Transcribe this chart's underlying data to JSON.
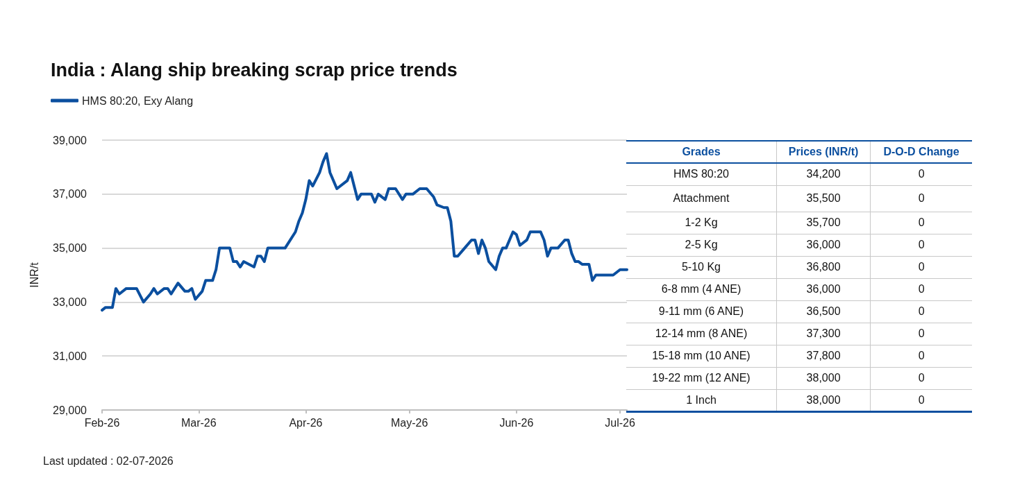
{
  "chart_data": [
    {
      "type": "line",
      "title": "India : Alang ship breaking scrap price trends",
      "ylabel": "INR/t",
      "annotations": [
        "Last updated : 02-07-2026"
      ],
      "x": [
        "2026-02-01",
        "2026-02-02",
        "2026-02-04",
        "2026-02-05",
        "2026-02-06",
        "2026-02-08",
        "2026-02-11",
        "2026-02-13",
        "2026-02-15",
        "2026-02-16",
        "2026-02-17",
        "2026-02-19",
        "2026-02-20",
        "2026-02-21",
        "2026-02-22",
        "2026-02-23",
        "2026-02-25",
        "2026-02-26",
        "2026-02-27",
        "2026-02-28",
        "2026-03-02",
        "2026-03-03",
        "2026-03-05",
        "2026-03-06",
        "2026-03-07",
        "2026-03-10",
        "2026-03-11",
        "2026-03-12",
        "2026-03-13",
        "2026-03-14",
        "2026-03-17",
        "2026-03-18",
        "2026-03-19",
        "2026-03-20",
        "2026-03-21",
        "2026-03-26",
        "2026-03-27",
        "2026-03-29",
        "2026-03-30",
        "2026-03-31",
        "2026-04-01",
        "2026-04-02",
        "2026-04-03",
        "2026-04-05",
        "2026-04-06",
        "2026-04-07",
        "2026-04-08",
        "2026-04-10",
        "2026-04-13",
        "2026-04-14",
        "2026-04-16",
        "2026-04-17",
        "2026-04-20",
        "2026-04-21",
        "2026-04-22",
        "2026-04-24",
        "2026-04-25",
        "2026-04-27",
        "2026-04-29",
        "2026-04-30",
        "2026-05-02",
        "2026-05-04",
        "2026-05-06",
        "2026-05-08",
        "2026-05-09",
        "2026-05-11",
        "2026-05-12",
        "2026-05-13",
        "2026-05-14",
        "2026-05-15",
        "2026-05-17",
        "2026-05-19",
        "2026-05-20",
        "2026-05-21",
        "2026-05-22",
        "2026-05-23",
        "2026-05-24",
        "2026-05-26",
        "2026-05-27",
        "2026-05-28",
        "2026-05-29",
        "2026-05-31",
        "2026-06-01",
        "2026-06-02",
        "2026-06-04",
        "2026-06-05",
        "2026-06-08",
        "2026-06-09",
        "2026-06-10",
        "2026-06-11",
        "2026-06-13",
        "2026-06-15",
        "2026-06-16",
        "2026-06-17",
        "2026-06-18",
        "2026-06-19",
        "2026-06-20",
        "2026-06-22",
        "2026-06-23",
        "2026-06-24",
        "2026-06-29",
        "2026-07-01",
        "2026-07-03"
      ],
      "series": [
        {
          "name": "HMS 80:20, Exy Alang",
          "color": "#0b4f9f",
          "values": [
            32700,
            32800,
            32800,
            33500,
            33300,
            33500,
            33500,
            33000,
            33300,
            33500,
            33300,
            33500,
            33500,
            33300,
            33500,
            33700,
            33400,
            33400,
            33500,
            33100,
            33400,
            33800,
            33800,
            34200,
            35000,
            35000,
            34500,
            34500,
            34300,
            34500,
            34300,
            34700,
            34700,
            34500,
            35000,
            35000,
            35200,
            35600,
            36000,
            36300,
            36800,
            37500,
            37300,
            37800,
            38200,
            38500,
            37800,
            37200,
            37500,
            37800,
            36800,
            37000,
            37000,
            36700,
            37000,
            36800,
            37200,
            37200,
            36800,
            37000,
            37000,
            37200,
            37200,
            36900,
            36600,
            36500,
            36500,
            36000,
            34700,
            34700,
            35000,
            35300,
            35300,
            34800,
            35300,
            35000,
            34500,
            34200,
            34700,
            35000,
            35000,
            35600,
            35500,
            35100,
            35300,
            35600,
            35600,
            35300,
            34700,
            35000,
            35000,
            35300,
            35300,
            34800,
            34500,
            34500,
            34400,
            34400,
            33800,
            34000,
            34000,
            34200,
            34200
          ]
        }
      ],
      "xlim": [
        "2026-02-01",
        "2026-07-03"
      ],
      "xticks": [
        {
          "value": "2026-02-01",
          "label": "Feb-26"
        },
        {
          "value": "2026-03-01",
          "label": "Mar-26"
        },
        {
          "value": "2026-04-01",
          "label": "Apr-26"
        },
        {
          "value": "2026-05-01",
          "label": "May-26"
        },
        {
          "value": "2026-06-01",
          "label": "Jun-26"
        },
        {
          "value": "2026-07-01",
          "label": "Jul-26"
        }
      ],
      "ylim": [
        29000,
        39000
      ],
      "yticks": [
        {
          "value": 29000,
          "label": "29,000"
        },
        {
          "value": 31000,
          "label": "31,000"
        },
        {
          "value": 33000,
          "label": "33,000"
        },
        {
          "value": 35000,
          "label": "35,000"
        },
        {
          "value": 37000,
          "label": "37,000"
        },
        {
          "value": 39000,
          "label": "39,000"
        }
      ],
      "grid": "y",
      "legend": "top left",
      "marker": "none",
      "line_style": "solid"
    },
    {
      "type": "other",
      "xlabel": "Grades",
      "categories": [
        "HMS 80:20",
        "Attachment",
        "1-2 Kg",
        "2-5 Kg",
        "5-10 Kg",
        "6-8 mm (4 ANE)",
        "9-11 mm (6 ANE)",
        "12-14 mm (8 ANE)",
        "15-18 mm (10 ANE)",
        "19-22 mm (12 ANE)",
        "1 Inch"
      ],
      "series": [
        {
          "name": "Prices (INR/t)",
          "color": "#0b4f9f",
          "values": [
            34200,
            35500,
            35700,
            36000,
            36800,
            36000,
            36500,
            37300,
            37800,
            38000,
            38000
          ],
          "value_labels": [
            "34,200",
            "35,500",
            "35,700",
            "36,000",
            "36,800",
            "36,000",
            "36,500",
            "37,300",
            "37,800",
            "38,000",
            "38,000"
          ]
        },
        {
          "name": "D-O-D Change",
          "color": "#0b4f9f",
          "values": [
            0,
            0,
            0,
            0,
            0,
            0,
            0,
            0,
            0,
            0,
            0
          ],
          "value_labels": [
            "0",
            "0",
            "0",
            "0",
            "0",
            "0",
            "0",
            "0",
            "0",
            "0",
            "0"
          ]
        }
      ]
    }
  ]
}
